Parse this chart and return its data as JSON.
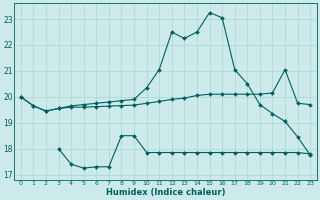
{
  "xlabel": "Humidex (Indice chaleur)",
  "bg_color": "#cceaea",
  "line_color": "#006060",
  "grid_color": "#b0d8d8",
  "xlim": [
    -0.5,
    23.5
  ],
  "ylim": [
    16.8,
    23.6
  ],
  "yticks": [
    17,
    18,
    19,
    20,
    21,
    22,
    23
  ],
  "xticks": [
    0,
    1,
    2,
    3,
    4,
    5,
    6,
    7,
    8,
    9,
    10,
    11,
    12,
    13,
    14,
    15,
    16,
    17,
    18,
    19,
    20,
    21,
    22,
    23
  ],
  "line1_x": [
    0,
    1,
    2,
    3,
    4,
    5,
    6,
    7,
    8,
    9,
    10,
    11,
    12,
    13,
    14,
    15,
    16,
    17,
    18,
    19,
    20,
    21,
    22,
    23
  ],
  "line1_y": [
    20.0,
    19.65,
    19.45,
    19.55,
    19.65,
    19.7,
    19.75,
    19.8,
    19.85,
    19.9,
    20.35,
    21.05,
    22.5,
    22.25,
    22.5,
    23.25,
    23.05,
    21.05,
    20.5,
    19.7,
    19.35,
    19.05,
    18.45,
    17.75
  ],
  "line2_x": [
    0,
    1,
    2,
    3,
    4,
    5,
    6,
    7,
    8,
    9,
    10,
    11,
    12,
    13,
    14,
    15,
    16,
    17,
    18,
    19,
    20,
    21,
    22,
    23
  ],
  "line2_y": [
    20.0,
    19.65,
    19.45,
    19.55,
    19.6,
    19.6,
    19.62,
    19.64,
    19.66,
    19.68,
    19.75,
    19.82,
    19.9,
    19.95,
    20.05,
    20.1,
    20.1,
    20.1,
    20.1,
    20.1,
    20.15,
    21.05,
    19.75,
    19.7
  ],
  "line3_x": [
    3,
    4,
    5,
    6,
    7,
    8,
    9,
    10,
    11,
    12,
    13,
    14,
    15,
    16,
    17,
    18,
    19,
    20,
    21,
    22,
    23
  ],
  "line3_y": [
    18.0,
    17.4,
    17.25,
    17.3,
    17.3,
    18.5,
    18.5,
    17.85,
    17.85,
    17.85,
    17.85,
    17.85,
    17.85,
    17.85,
    17.85,
    17.85,
    17.85,
    17.85,
    17.85,
    17.85,
    17.8
  ]
}
